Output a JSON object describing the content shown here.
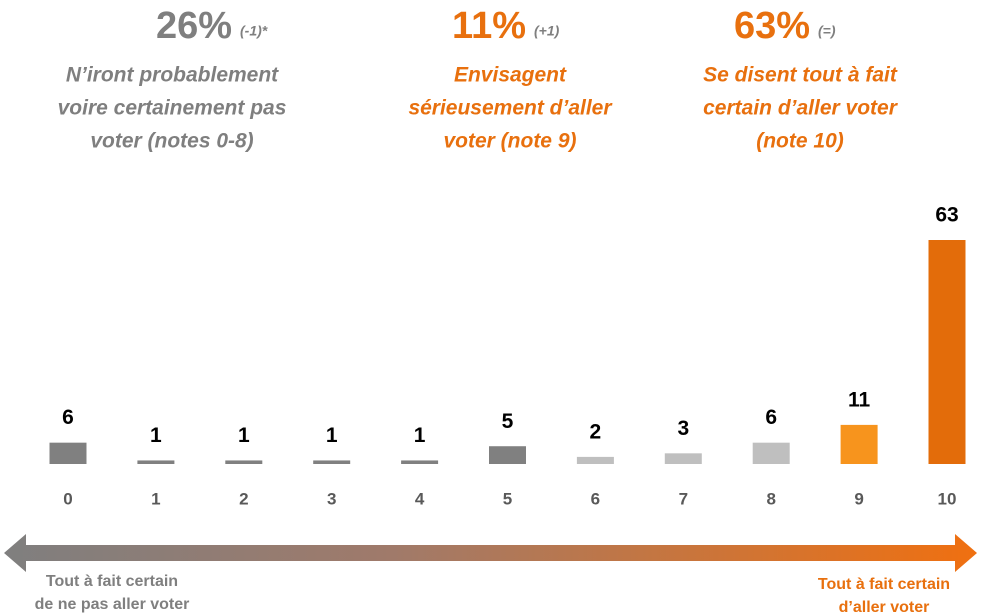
{
  "chart_data": {
    "type": "bar",
    "annotations": [
      {
        "value": "26%",
        "change": "(-1)*",
        "color": "#7f7f7f",
        "lines": [
          "N’iront probablement",
          "voire certainement pas",
          "voter (notes 0-8)"
        ]
      },
      {
        "value": "11%",
        "change": "(+1)",
        "color": "#e8700e",
        "lines": [
          "Envisagent",
          "sérieusement d’aller",
          "voter (note 9)"
        ]
      },
      {
        "value": "63%",
        "change": "(=)",
        "color": "#e8700e",
        "lines": [
          "Se disent tout à fait",
          "certain d’aller voter",
          "(note 10)"
        ]
      }
    ],
    "categories": [
      "0",
      "1",
      "2",
      "3",
      "4",
      "5",
      "6",
      "7",
      "8",
      "9",
      "10"
    ],
    "values": [
      6,
      1,
      1,
      1,
      1,
      5,
      2,
      3,
      6,
      11,
      63
    ],
    "colors": [
      "#808080",
      "#808080",
      "#808080",
      "#808080",
      "#808080",
      "#808080",
      "#bfbfbf",
      "#bfbfbf",
      "#bfbfbf",
      "#f7941d",
      "#e36c0a"
    ],
    "left_label": [
      "Tout à fait certain",
      "de ne pas aller voter"
    ],
    "right_label": [
      "Tout à fait certain",
      "d’aller voter"
    ]
  }
}
